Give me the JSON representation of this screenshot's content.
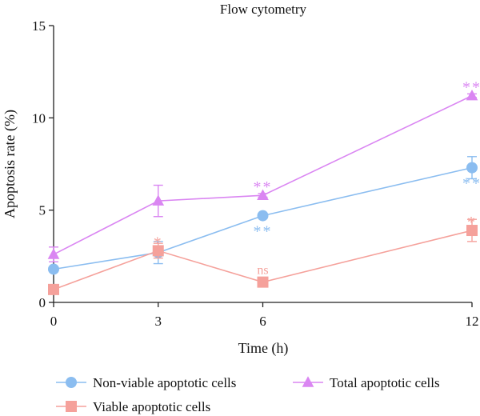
{
  "chart_data": {
    "type": "line",
    "title": "Flow cytometry",
    "xlabel": "Time (h)",
    "ylabel": "Apoptosis rate (%)",
    "x": [
      0,
      3,
      6,
      12
    ],
    "x_tick_labels": [
      "0",
      "3",
      "6",
      "12"
    ],
    "ylim": [
      0,
      15
    ],
    "y_ticks": [
      0,
      5,
      10,
      15
    ],
    "y_tick_labels": [
      "0",
      "5",
      "10",
      "15"
    ],
    "grid": false,
    "legend_position": "bottom",
    "series": [
      {
        "name": "Non-viable apoptotic cells",
        "marker": "circle",
        "color": "#8bbdf0",
        "values": [
          1.8,
          2.7,
          4.7,
          7.3
        ],
        "errors": [
          0.1,
          0.6,
          0.1,
          0.6
        ],
        "annotations": [
          "",
          "",
          "**",
          "**"
        ],
        "annotation_side": "below"
      },
      {
        "name": "Viable apoptotic cells",
        "marker": "square",
        "color": "#f5a19b",
        "values": [
          0.7,
          2.8,
          1.1,
          3.9
        ],
        "errors": [
          0.1,
          0.4,
          0.1,
          0.6
        ],
        "annotations": [
          "",
          "*",
          "ns",
          "*"
        ],
        "annotation_side": "above"
      },
      {
        "name": "Total apoptotic cells",
        "marker": "triangle",
        "color": "#da86f2",
        "values": [
          2.6,
          5.5,
          5.8,
          11.2
        ],
        "errors": [
          0.4,
          0.85,
          0.1,
          0.1
        ],
        "annotations": [
          "",
          "",
          "**",
          "**"
        ],
        "annotation_side": "above"
      }
    ],
    "legend": [
      {
        "series": 0,
        "label": "Non-viable apoptotic cells"
      },
      {
        "series": 2,
        "label": "Total apoptotic cells"
      },
      {
        "series": 1,
        "label": "Viable apoptotic cells"
      }
    ]
  }
}
